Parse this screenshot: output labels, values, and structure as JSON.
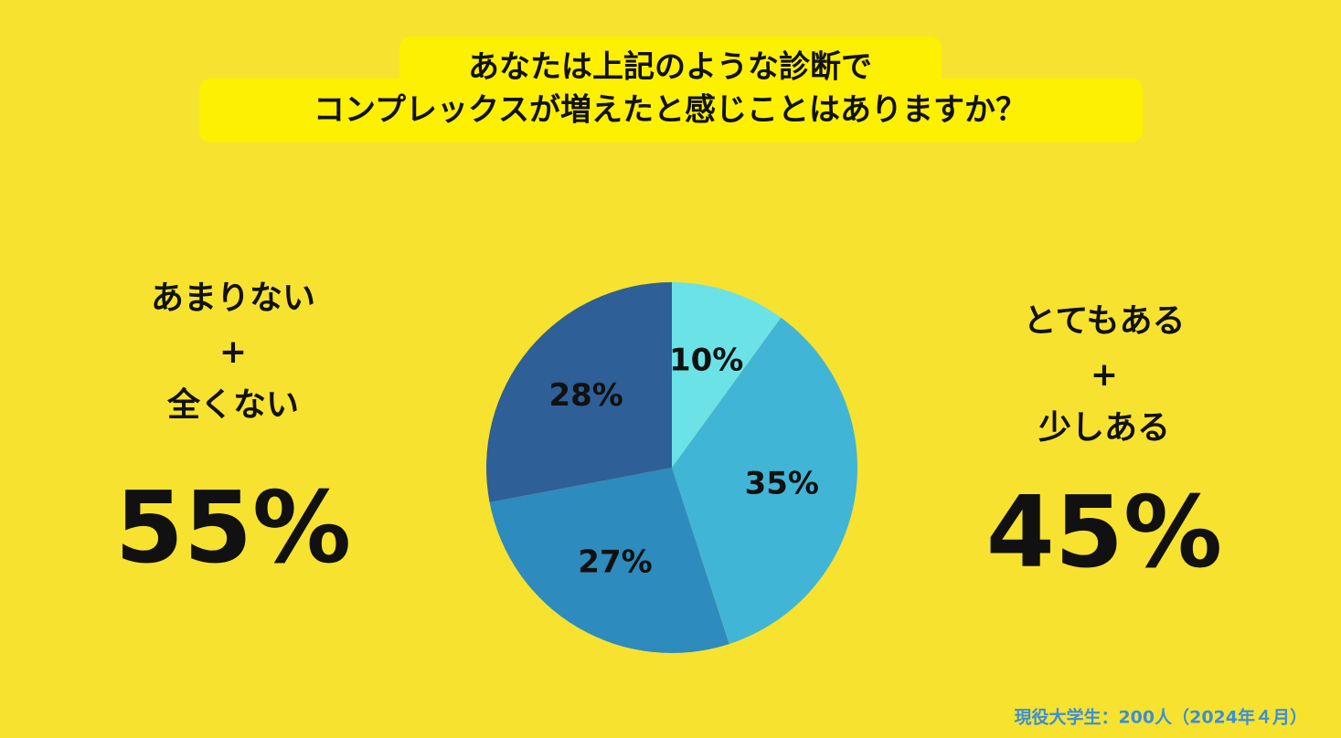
{
  "chart_data": {
    "type": "pie",
    "title_lines": [
      "あなたは上記のような診断で",
      "コンプレックスが増えたと感じことはありますか？"
    ],
    "categories": [
      null,
      null,
      null,
      null
    ],
    "values": [
      10,
      35,
      27,
      28
    ],
    "value_labels": [
      "10%",
      "35%",
      "27%",
      "28%"
    ],
    "colors": [
      "#6be3e6",
      "#41b5d6",
      "#2e8bbd",
      "#2f5f97"
    ],
    "summaries": [
      {
        "lines": [
          "あまりない",
          "+",
          "全くない"
        ],
        "value": 55,
        "value_label": "55%"
      },
      {
        "lines": [
          "とてもある",
          "+",
          "少しある"
        ],
        "value": 45,
        "value_label": "45%"
      }
    ],
    "source": "現役大学生：200人（2024年４月）"
  }
}
